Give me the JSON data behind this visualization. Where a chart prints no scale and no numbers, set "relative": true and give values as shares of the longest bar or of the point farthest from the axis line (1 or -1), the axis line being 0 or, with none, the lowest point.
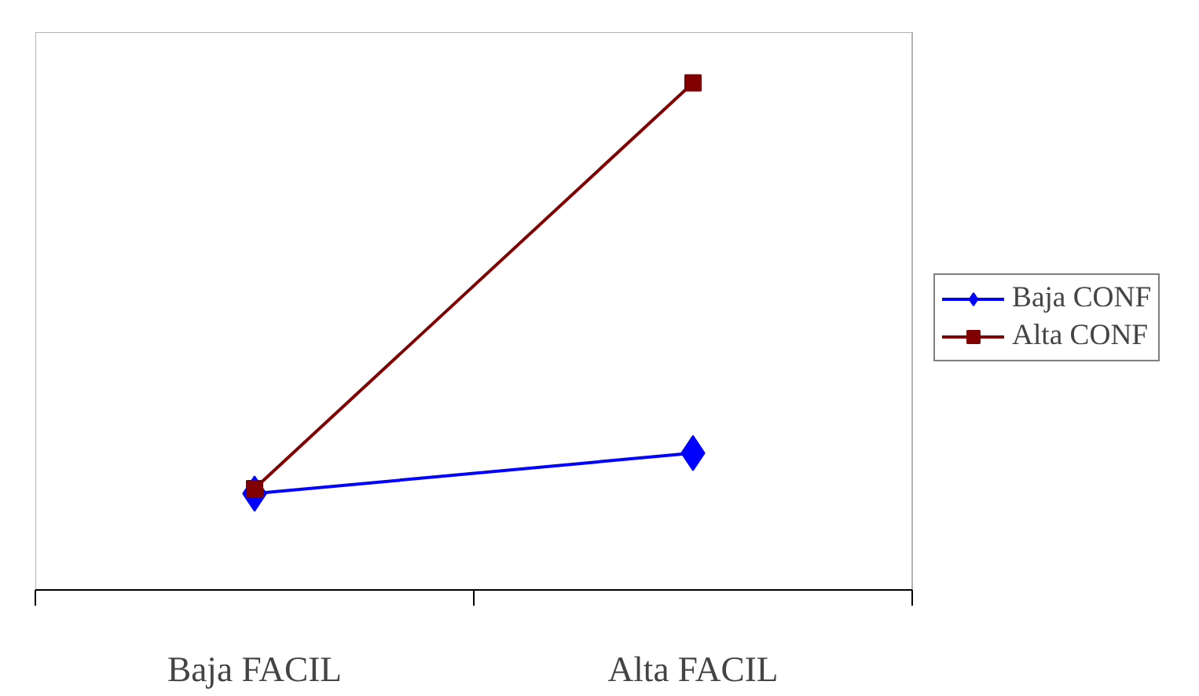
{
  "chart_data": {
    "type": "line",
    "relative": true,
    "categories": [
      "Baja FACIL",
      "Alta FACIL"
    ],
    "series": [
      {
        "name": "Baja CONF",
        "color": "#0000ff",
        "marker": "diamond",
        "values": [
          0.19,
          0.27
        ]
      },
      {
        "name": "Alta CONF",
        "color": "#800000",
        "marker": "square",
        "values": [
          0.2,
          1
        ]
      }
    ],
    "legend": "right",
    "grid": false,
    "line_style": "solid"
  }
}
